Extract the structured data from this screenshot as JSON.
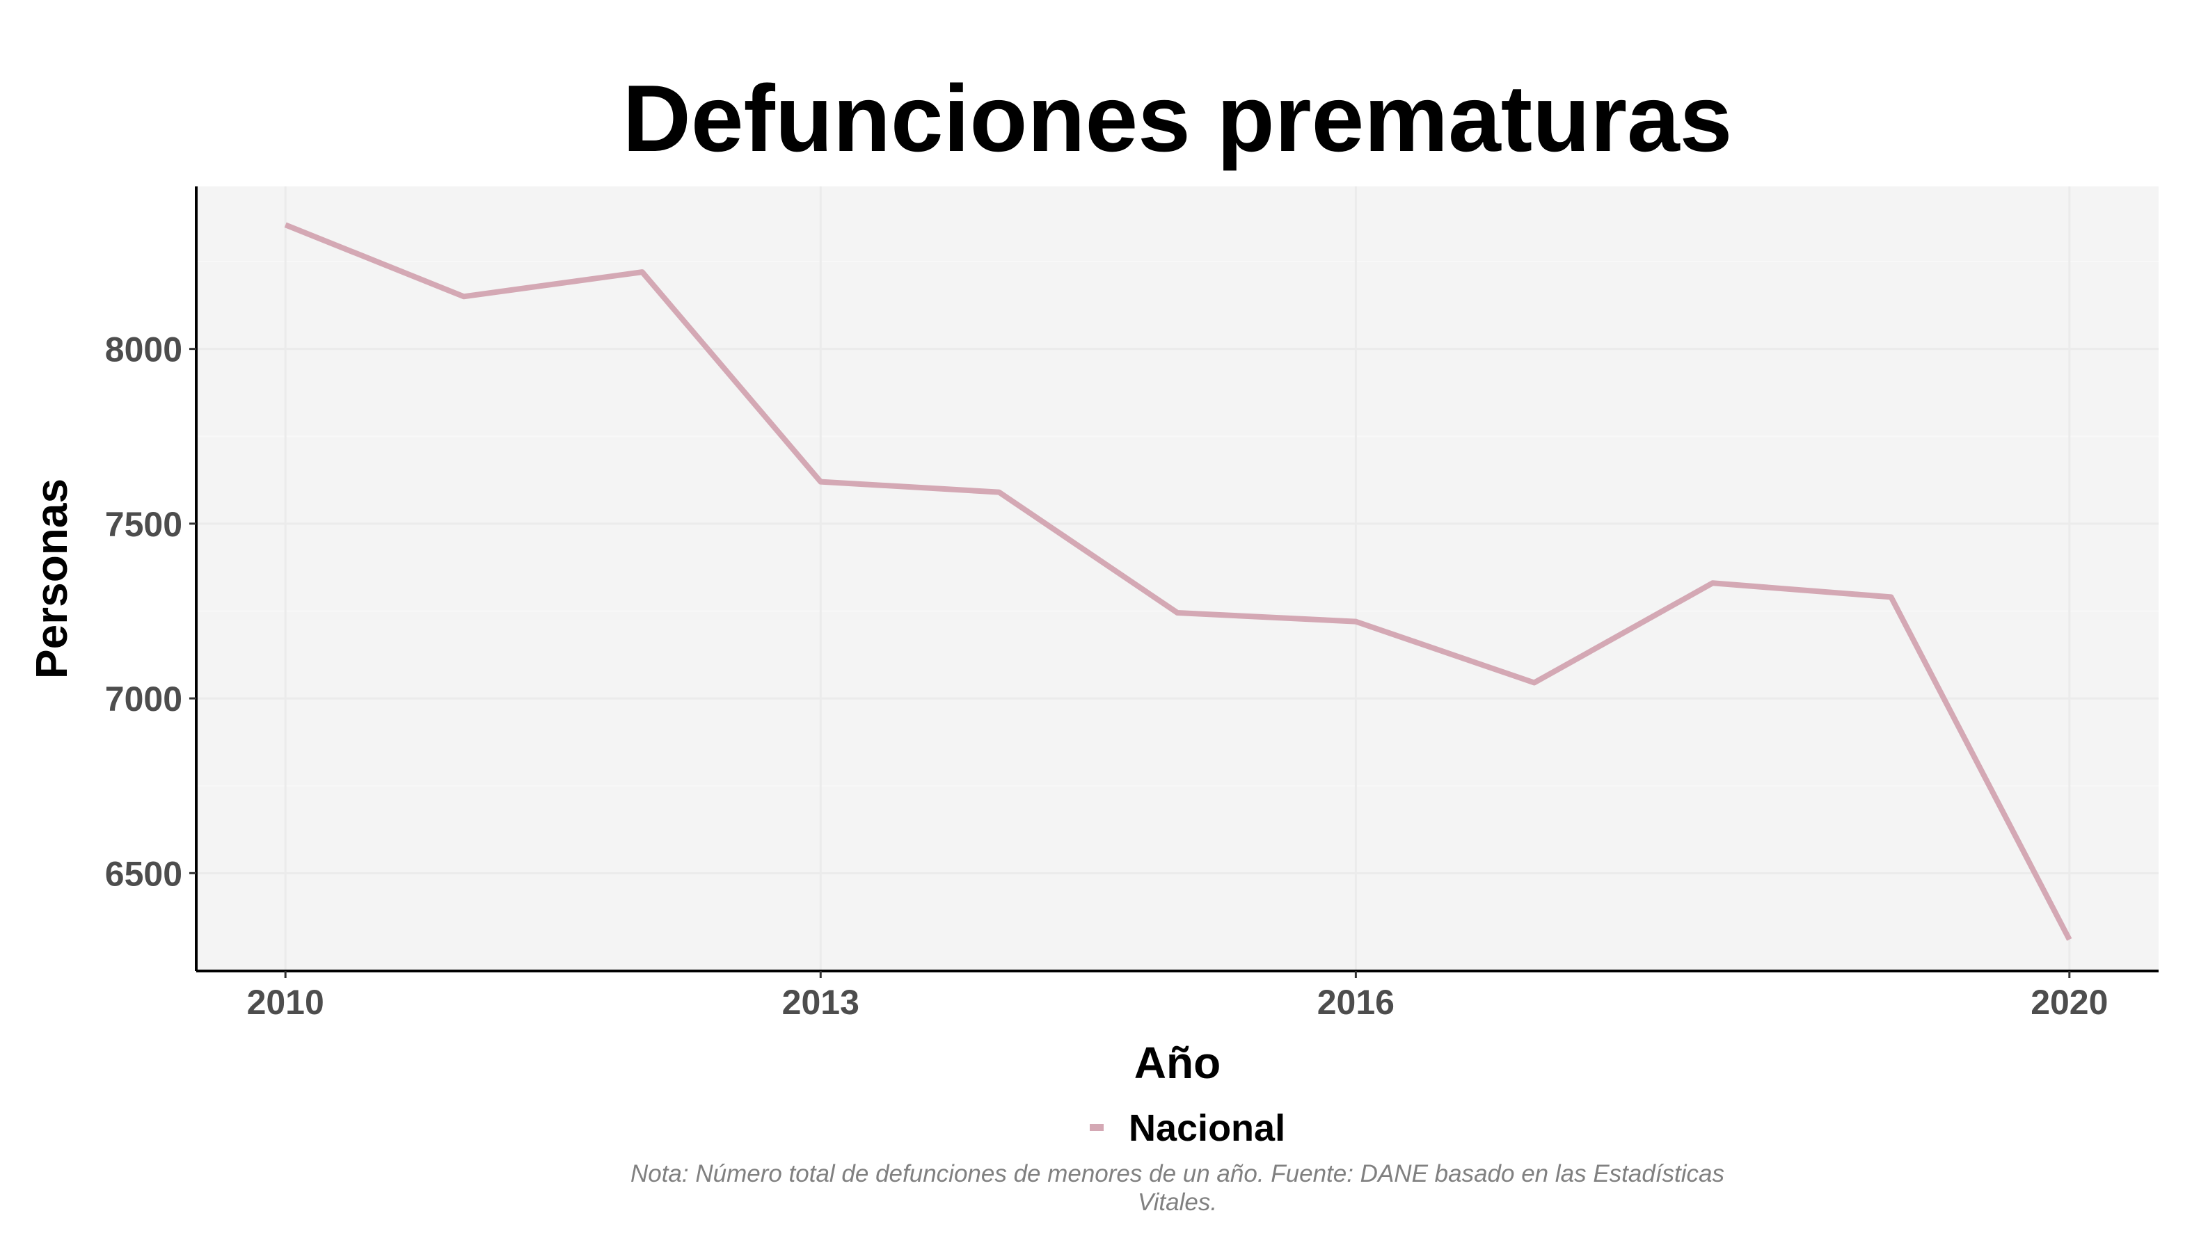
{
  "chart_data": {
    "type": "line",
    "title": "Defunciones prematuras",
    "xlabel": "Año",
    "ylabel": "Personas",
    "x": [
      2010,
      2011,
      2012,
      2013,
      2014,
      2015,
      2016,
      2017,
      2018,
      2019,
      2020
    ],
    "series": [
      {
        "name": "Nacional",
        "color": "#d4a8b4",
        "values": [
          8355,
          8150,
          8220,
          7620,
          7590,
          7245,
          7220,
          7045,
          7330,
          7290,
          6310
        ]
      }
    ],
    "xticks": [
      2010,
      2013,
      2016,
      2020
    ],
    "yticks": [
      6500,
      7000,
      7500,
      8000
    ],
    "xlim": [
      2009.5,
      2020.5
    ],
    "ylim": [
      6220,
      8465
    ],
    "grid": true,
    "panel_background": "#f4f4f4",
    "legend_position": "bottom",
    "caption_lines": [
      "Nota: Número total de defunciones de menores de un año. Fuente: DANE basado en las Estadísticas",
      "Vitales."
    ]
  }
}
